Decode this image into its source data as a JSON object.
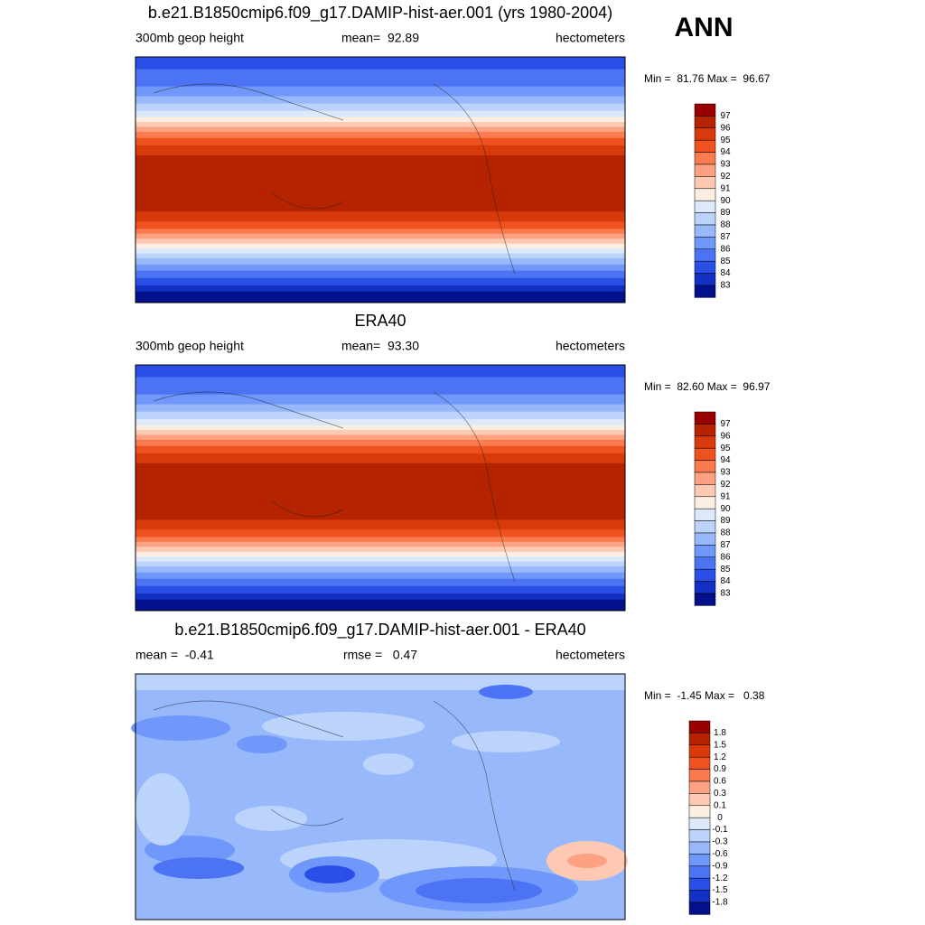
{
  "corner_label": "ANN",
  "panels": [
    {
      "title": "b.e21.B1850cmip6.f09_g17.DAMIP-hist-aer.001 (yrs 1980-2004)",
      "left": "300mb geop height",
      "center": "mean=  92.89",
      "right": "hectometers",
      "minmax": "Min =  81.76 Max =  96.67",
      "colorbar": {
        "labels": [
          "97",
          "96",
          "95",
          "94",
          "93",
          "92",
          "91",
          "90",
          "89",
          "88",
          "87",
          "86",
          "85",
          "84",
          "83"
        ],
        "colors": [
          "#990000",
          "#b52300",
          "#d83a0b",
          "#f0521f",
          "#fb7b50",
          "#fca283",
          "#fdc9b3",
          "#fdeee2",
          "#dce9fb",
          "#bcd3fb",
          "#97b8fb",
          "#6f98fa",
          "#4b73f4",
          "#2a4fe6",
          "#1230c4",
          "#02108c"
        ]
      }
    },
    {
      "title": "ERA40",
      "left": "300mb geop height",
      "center": "mean=  93.30",
      "right": "hectometers",
      "minmax": "Min =  82.60 Max =  96.97",
      "colorbar": {
        "labels": [
          "97",
          "96",
          "95",
          "94",
          "93",
          "92",
          "91",
          "90",
          "89",
          "88",
          "87",
          "86",
          "85",
          "84",
          "83"
        ],
        "colors": [
          "#990000",
          "#b52300",
          "#d83a0b",
          "#f0521f",
          "#fb7b50",
          "#fca283",
          "#fdc9b3",
          "#fdeee2",
          "#dce9fb",
          "#bcd3fb",
          "#97b8fb",
          "#6f98fa",
          "#4b73f4",
          "#2a4fe6",
          "#1230c4",
          "#02108c"
        ]
      }
    },
    {
      "title": "b.e21.B1850cmip6.f09_g17.DAMIP-hist-aer.001 - ERA40",
      "left": "mean =  -0.41",
      "center": "rmse =   0.47",
      "right": "hectometers",
      "minmax": "Min =  -1.45 Max =   0.38",
      "colorbar": {
        "labels": [
          "1.8",
          "1.5",
          "1.2",
          "0.9",
          "0.6",
          "0.3",
          "0.1",
          "0",
          "-0.1",
          "-0.3",
          "-0.6",
          "-0.9",
          "-1.2",
          "-1.5",
          "-1.8"
        ],
        "colors": [
          "#990000",
          "#b52300",
          "#d83a0b",
          "#f0521f",
          "#fb7b50",
          "#fca283",
          "#fdc9b3",
          "#fdeee2",
          "#dce9fb",
          "#bcd3fb",
          "#97b8fb",
          "#6f98fa",
          "#4b73f4",
          "#2a4fe6",
          "#1230c4",
          "#02108c"
        ]
      }
    }
  ]
}
